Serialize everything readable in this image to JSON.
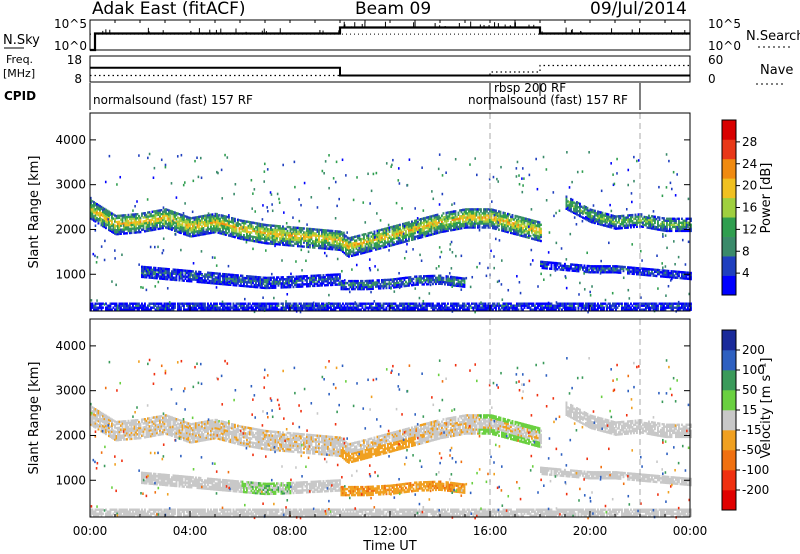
{
  "header": {
    "station": "Adak East (fitACF)",
    "beam": "Beam 09",
    "date": "09/Jul/2014"
  },
  "nsky_panel": {
    "left_label": "N.Sky",
    "right_label": "N.Search",
    "left_ticks": [
      "10^5",
      "10^0"
    ],
    "right_ticks": [
      "10^5",
      "10^0"
    ]
  },
  "freq_panel": {
    "left_label_1": "Freq.",
    "left_label_2": "[MHz]",
    "left_ticks": [
      "18",
      "8"
    ],
    "right_label": "Nave",
    "right_ticks": [
      "60",
      "0"
    ]
  },
  "cpid": {
    "label": "CPID",
    "modes": [
      {
        "name": "normalsound (fast) 157 RF",
        "start_hour": 0
      },
      {
        "name": "rbsp 200 RF",
        "start_hour": 16
      },
      {
        "name": "normalsound (fast) 157 RF",
        "start_hour": 18
      }
    ]
  },
  "power_panel": {
    "ylabel": "Slant Range [km]",
    "yticks": [
      "4000",
      "3000",
      "2000",
      "1000"
    ],
    "colorbar_label": "Power [dB]",
    "colorbar_ticks": [
      "28",
      "24",
      "20",
      "16",
      "12",
      "8",
      "4"
    ]
  },
  "velocity_panel": {
    "ylabel": "Slant Range [km]",
    "yticks": [
      "4000",
      "3000",
      "2000",
      "1000"
    ],
    "colorbar_label": "Velocity [m s⁻¹]",
    "colorbar_ticks": [
      "200",
      "100",
      "50",
      "15",
      "-15",
      "-50",
      "-100",
      "-200"
    ]
  },
  "xaxis": {
    "label": "Time UT",
    "ticks": [
      "00:00",
      "04:00",
      "08:00",
      "12:00",
      "16:00",
      "20:00",
      "00:00"
    ]
  },
  "colors": {
    "power_scale": [
      "#0000ff",
      "#1f3fbf",
      "#3a8a6a",
      "#2f9e4f",
      "#9fcf3f",
      "#f0c020",
      "#f08a10",
      "#e83818",
      "#d80000"
    ],
    "velocity_scale": [
      "#1a2a9a",
      "#2e60c0",
      "#3a9a5a",
      "#6ad040",
      "#c8c8c8",
      "#f0a020",
      "#f07010",
      "#f03010",
      "#e00000"
    ]
  },
  "chart_data": {
    "type": "heatmap",
    "x_range_hours": [
      0,
      24
    ],
    "y_range_km": [
      180,
      4600
    ],
    "power_range_db": [
      0,
      32
    ],
    "velocity_range_ms": [
      -250,
      250
    ],
    "nsky_level": [
      {
        "from_hour": 0.0,
        "to_hour": 0.2,
        "level": 0.0
      },
      {
        "from_hour": 0.2,
        "to_hour": 10.0,
        "level": 0.55
      },
      {
        "from_hour": 10.0,
        "to_hour": 18.0,
        "level": 0.75
      },
      {
        "from_hour": 18.0,
        "to_hour": 24.0,
        "level": 0.55
      }
    ],
    "frequency_mhz": [
      {
        "from_hour": 0,
        "to_hour": 10,
        "value": 13.5
      },
      {
        "from_hour": 10,
        "to_hour": 24,
        "value": 10.5
      }
    ],
    "nave": [
      {
        "from_hour": 0,
        "to_hour": 16,
        "value": 15
      },
      {
        "from_hour": 16,
        "to_hour": 18,
        "value": 23
      },
      {
        "from_hour": 18,
        "to_hour": 24,
        "value": 38
      }
    ],
    "mode_changes_hours": [
      16,
      18,
      22
    ],
    "echo_bands": [
      {
        "name": "main",
        "points": [
          [
            0,
            2450
          ],
          [
            1,
            2100
          ],
          [
            2,
            2150
          ],
          [
            3,
            2250
          ],
          [
            4,
            2050
          ],
          [
            5,
            2150
          ],
          [
            6,
            2000
          ],
          [
            7,
            1900
          ],
          [
            8,
            1850
          ],
          [
            9,
            1800
          ],
          [
            10,
            1750
          ],
          [
            10.3,
            1600
          ],
          [
            11,
            1700
          ],
          [
            12,
            1850
          ],
          [
            13,
            2000
          ],
          [
            14,
            2150
          ],
          [
            15,
            2250
          ],
          [
            16,
            2250
          ],
          [
            17,
            2100
          ],
          [
            18,
            1950
          ]
        ],
        "thickness_km": 450,
        "power_db": 16,
        "velocity_ms": -5
      },
      {
        "name": "high",
        "points": [
          [
            19,
            2600
          ],
          [
            20,
            2300
          ],
          [
            21,
            2150
          ],
          [
            22,
            2200
          ],
          [
            23,
            2100
          ],
          [
            24,
            2100
          ]
        ],
        "thickness_km": 300,
        "power_db": 12,
        "velocity_ms": 0
      },
      {
        "name": "low_morning",
        "points": [
          [
            2,
            1050
          ],
          [
            3,
            1000
          ],
          [
            4,
            950
          ],
          [
            5,
            900
          ],
          [
            6,
            850
          ],
          [
            7,
            800
          ],
          [
            8,
            820
          ],
          [
            9,
            850
          ],
          [
            10,
            880
          ]
        ],
        "thickness_km": 250,
        "power_db": 6,
        "velocity_ms": 0
      },
      {
        "name": "low_midday",
        "points": [
          [
            10,
            750
          ],
          [
            11,
            750
          ],
          [
            12,
            780
          ],
          [
            13,
            850
          ],
          [
            14,
            870
          ],
          [
            15,
            800
          ]
        ],
        "thickness_km": 200,
        "power_db": 8,
        "velocity_ms": -40
      },
      {
        "name": "low_evening",
        "points": [
          [
            18,
            1200
          ],
          [
            19,
            1150
          ],
          [
            20,
            1100
          ],
          [
            21,
            1100
          ],
          [
            22,
            1050
          ],
          [
            23,
            1000
          ],
          [
            24,
            950
          ]
        ],
        "thickness_km": 150,
        "power_db": 5,
        "velocity_ms": 0
      },
      {
        "name": "ground_floor",
        "points": [
          [
            0,
            280
          ],
          [
            24,
            280
          ]
        ],
        "thickness_km": 180,
        "power_db": 4,
        "velocity_ms": 0
      }
    ]
  }
}
